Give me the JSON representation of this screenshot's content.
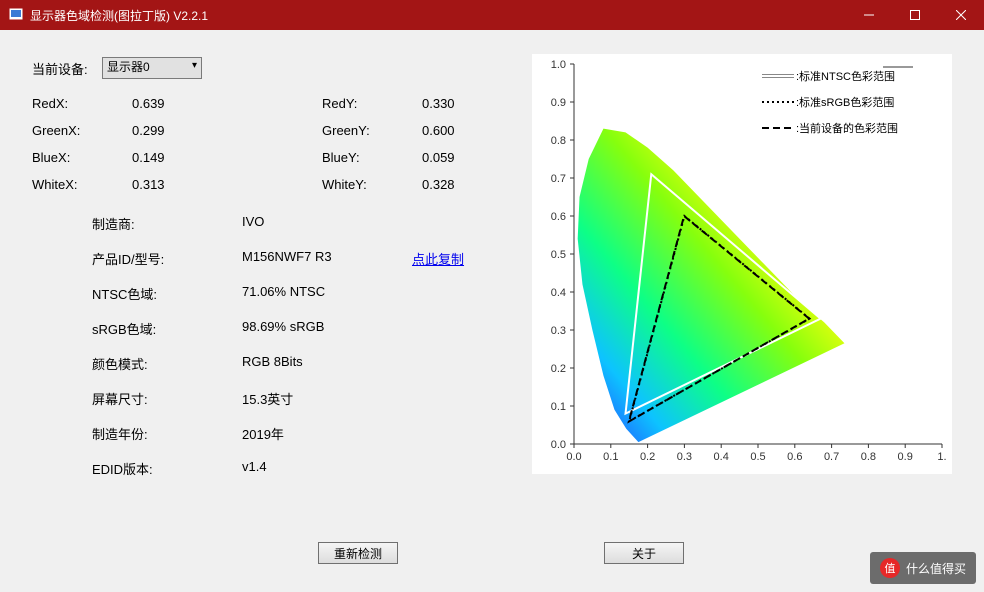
{
  "window": {
    "title": "显示器色域检测(图拉丁版) V2.2.1",
    "titlebar_bg": "#a31515"
  },
  "device": {
    "label": "当前设备:",
    "selected": "显示器0"
  },
  "chroma": {
    "RedX_label": "RedX:",
    "RedX": "0.639",
    "RedY_label": "RedY:",
    "RedY": "0.330",
    "GreenX_label": "GreenX:",
    "GreenX": "0.299",
    "GreenY_label": "GreenY:",
    "GreenY": "0.600",
    "BlueX_label": "BlueX:",
    "BlueX": "0.149",
    "BlueY_label": "BlueY:",
    "BlueY": "0.059",
    "WhiteX_label": "WhiteX:",
    "WhiteX": "0.313",
    "WhiteY_label": "WhiteY:",
    "WhiteY": "0.328"
  },
  "info": {
    "manufacturer_label": "制造商:",
    "manufacturer": "IVO",
    "product_label": "产品ID/型号:",
    "product": "M156NWF7 R3",
    "copy_link": "点此复制",
    "ntsc_label": "NTSC色域:",
    "ntsc": "71.06% NTSC",
    "srgb_label": "sRGB色域:",
    "srgb": "98.69% sRGB",
    "color_mode_label": "颜色模式:",
    "color_mode": "RGB 8Bits",
    "screen_size_label": "屏幕尺寸:",
    "screen_size": "15.3英寸",
    "mfg_year_label": "制造年份:",
    "mfg_year": "2019年",
    "edid_label": "EDID版本:",
    "edid": "v1.4"
  },
  "buttons": {
    "redetect": "重新检测",
    "about": "关于"
  },
  "chart": {
    "type": "cie-chromaticity",
    "xlim": [
      0.0,
      1.0
    ],
    "ylim": [
      0.0,
      1.0
    ],
    "xtick_step": 0.1,
    "ytick_step": 0.1,
    "tick_labels": [
      "0.0",
      "0.1",
      "0.2",
      "0.3",
      "0.4",
      "0.5",
      "0.6",
      "0.7",
      "0.8",
      "0.9",
      "1."
    ],
    "tick_labels_y": [
      "0.0",
      "0.1",
      "0.2",
      "0.3",
      "0.4",
      "0.5",
      "0.6",
      "0.7",
      "0.8",
      "0.9",
      "1.0"
    ],
    "background_color": "#ffffff",
    "tick_color": "#333333",
    "tick_fontsize": 11,
    "spectral_locus": [
      [
        0.175,
        0.005
      ],
      [
        0.142,
        0.04
      ],
      [
        0.11,
        0.09
      ],
      [
        0.08,
        0.18
      ],
      [
        0.05,
        0.3
      ],
      [
        0.023,
        0.42
      ],
      [
        0.01,
        0.54
      ],
      [
        0.015,
        0.65
      ],
      [
        0.04,
        0.75
      ],
      [
        0.08,
        0.83
      ],
      [
        0.14,
        0.82
      ],
      [
        0.2,
        0.78
      ],
      [
        0.27,
        0.72
      ],
      [
        0.34,
        0.65
      ],
      [
        0.41,
        0.58
      ],
      [
        0.48,
        0.51
      ],
      [
        0.55,
        0.44
      ],
      [
        0.62,
        0.37
      ],
      [
        0.68,
        0.32
      ],
      [
        0.735,
        0.265
      ],
      [
        0.175,
        0.005
      ]
    ],
    "ntsc_triangle": {
      "points": [
        [
          0.67,
          0.33
        ],
        [
          0.21,
          0.71
        ],
        [
          0.14,
          0.08
        ]
      ],
      "stroke": "#ffffff",
      "stroke_width": 2,
      "style": "solid",
      "legend": ":标准NTSC色彩范围"
    },
    "srgb_triangle": {
      "points": [
        [
          0.64,
          0.33
        ],
        [
          0.3,
          0.6
        ],
        [
          0.15,
          0.06
        ]
      ],
      "stroke": "#000000",
      "stroke_width": 2,
      "style": "dotted",
      "legend": ":标准sRGB色彩范围"
    },
    "device_triangle": {
      "points": [
        [
          0.639,
          0.33
        ],
        [
          0.299,
          0.6
        ],
        [
          0.149,
          0.059
        ]
      ],
      "stroke": "#000000",
      "stroke_width": 2,
      "style": "dashed",
      "legend": ":当前设备的色彩范围"
    }
  },
  "watermark": {
    "symbol": "值",
    "text": "什么值得买"
  }
}
